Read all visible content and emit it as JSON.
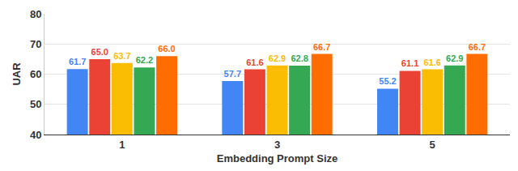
{
  "chart_data": {
    "type": "bar",
    "categories": [
      "1",
      "3",
      "5"
    ],
    "x_label": "Embedding Prompt Size",
    "y_label": "UAR",
    "series": [
      {
        "color": "#4285F4",
        "values": [
          61.7,
          57.7,
          55.2
        ],
        "value_labels": [
          "61.7",
          "57.7",
          "55.2"
        ]
      },
      {
        "color": "#EA4335",
        "values": [
          65.0,
          61.6,
          61.1
        ],
        "value_labels": [
          "65.0",
          "61.6",
          "61.1"
        ]
      },
      {
        "color": "#FBBC04",
        "values": [
          63.7,
          62.9,
          61.6
        ],
        "value_labels": [
          "63.7",
          "62.9",
          "61.6"
        ]
      },
      {
        "color": "#34A853",
        "values": [
          62.2,
          62.8,
          62.9
        ],
        "value_labels": [
          "62.2",
          "62.8",
          "62.9"
        ]
      },
      {
        "color": "#FF6D01",
        "values": [
          66.0,
          66.7,
          66.7
        ],
        "value_labels": [
          "66.0",
          "66.7",
          "66.7"
        ]
      }
    ],
    "ylim": [
      40,
      80
    ],
    "yticks": [
      40,
      50,
      60,
      70,
      80
    ],
    "grid": true,
    "data_labels": true
  }
}
